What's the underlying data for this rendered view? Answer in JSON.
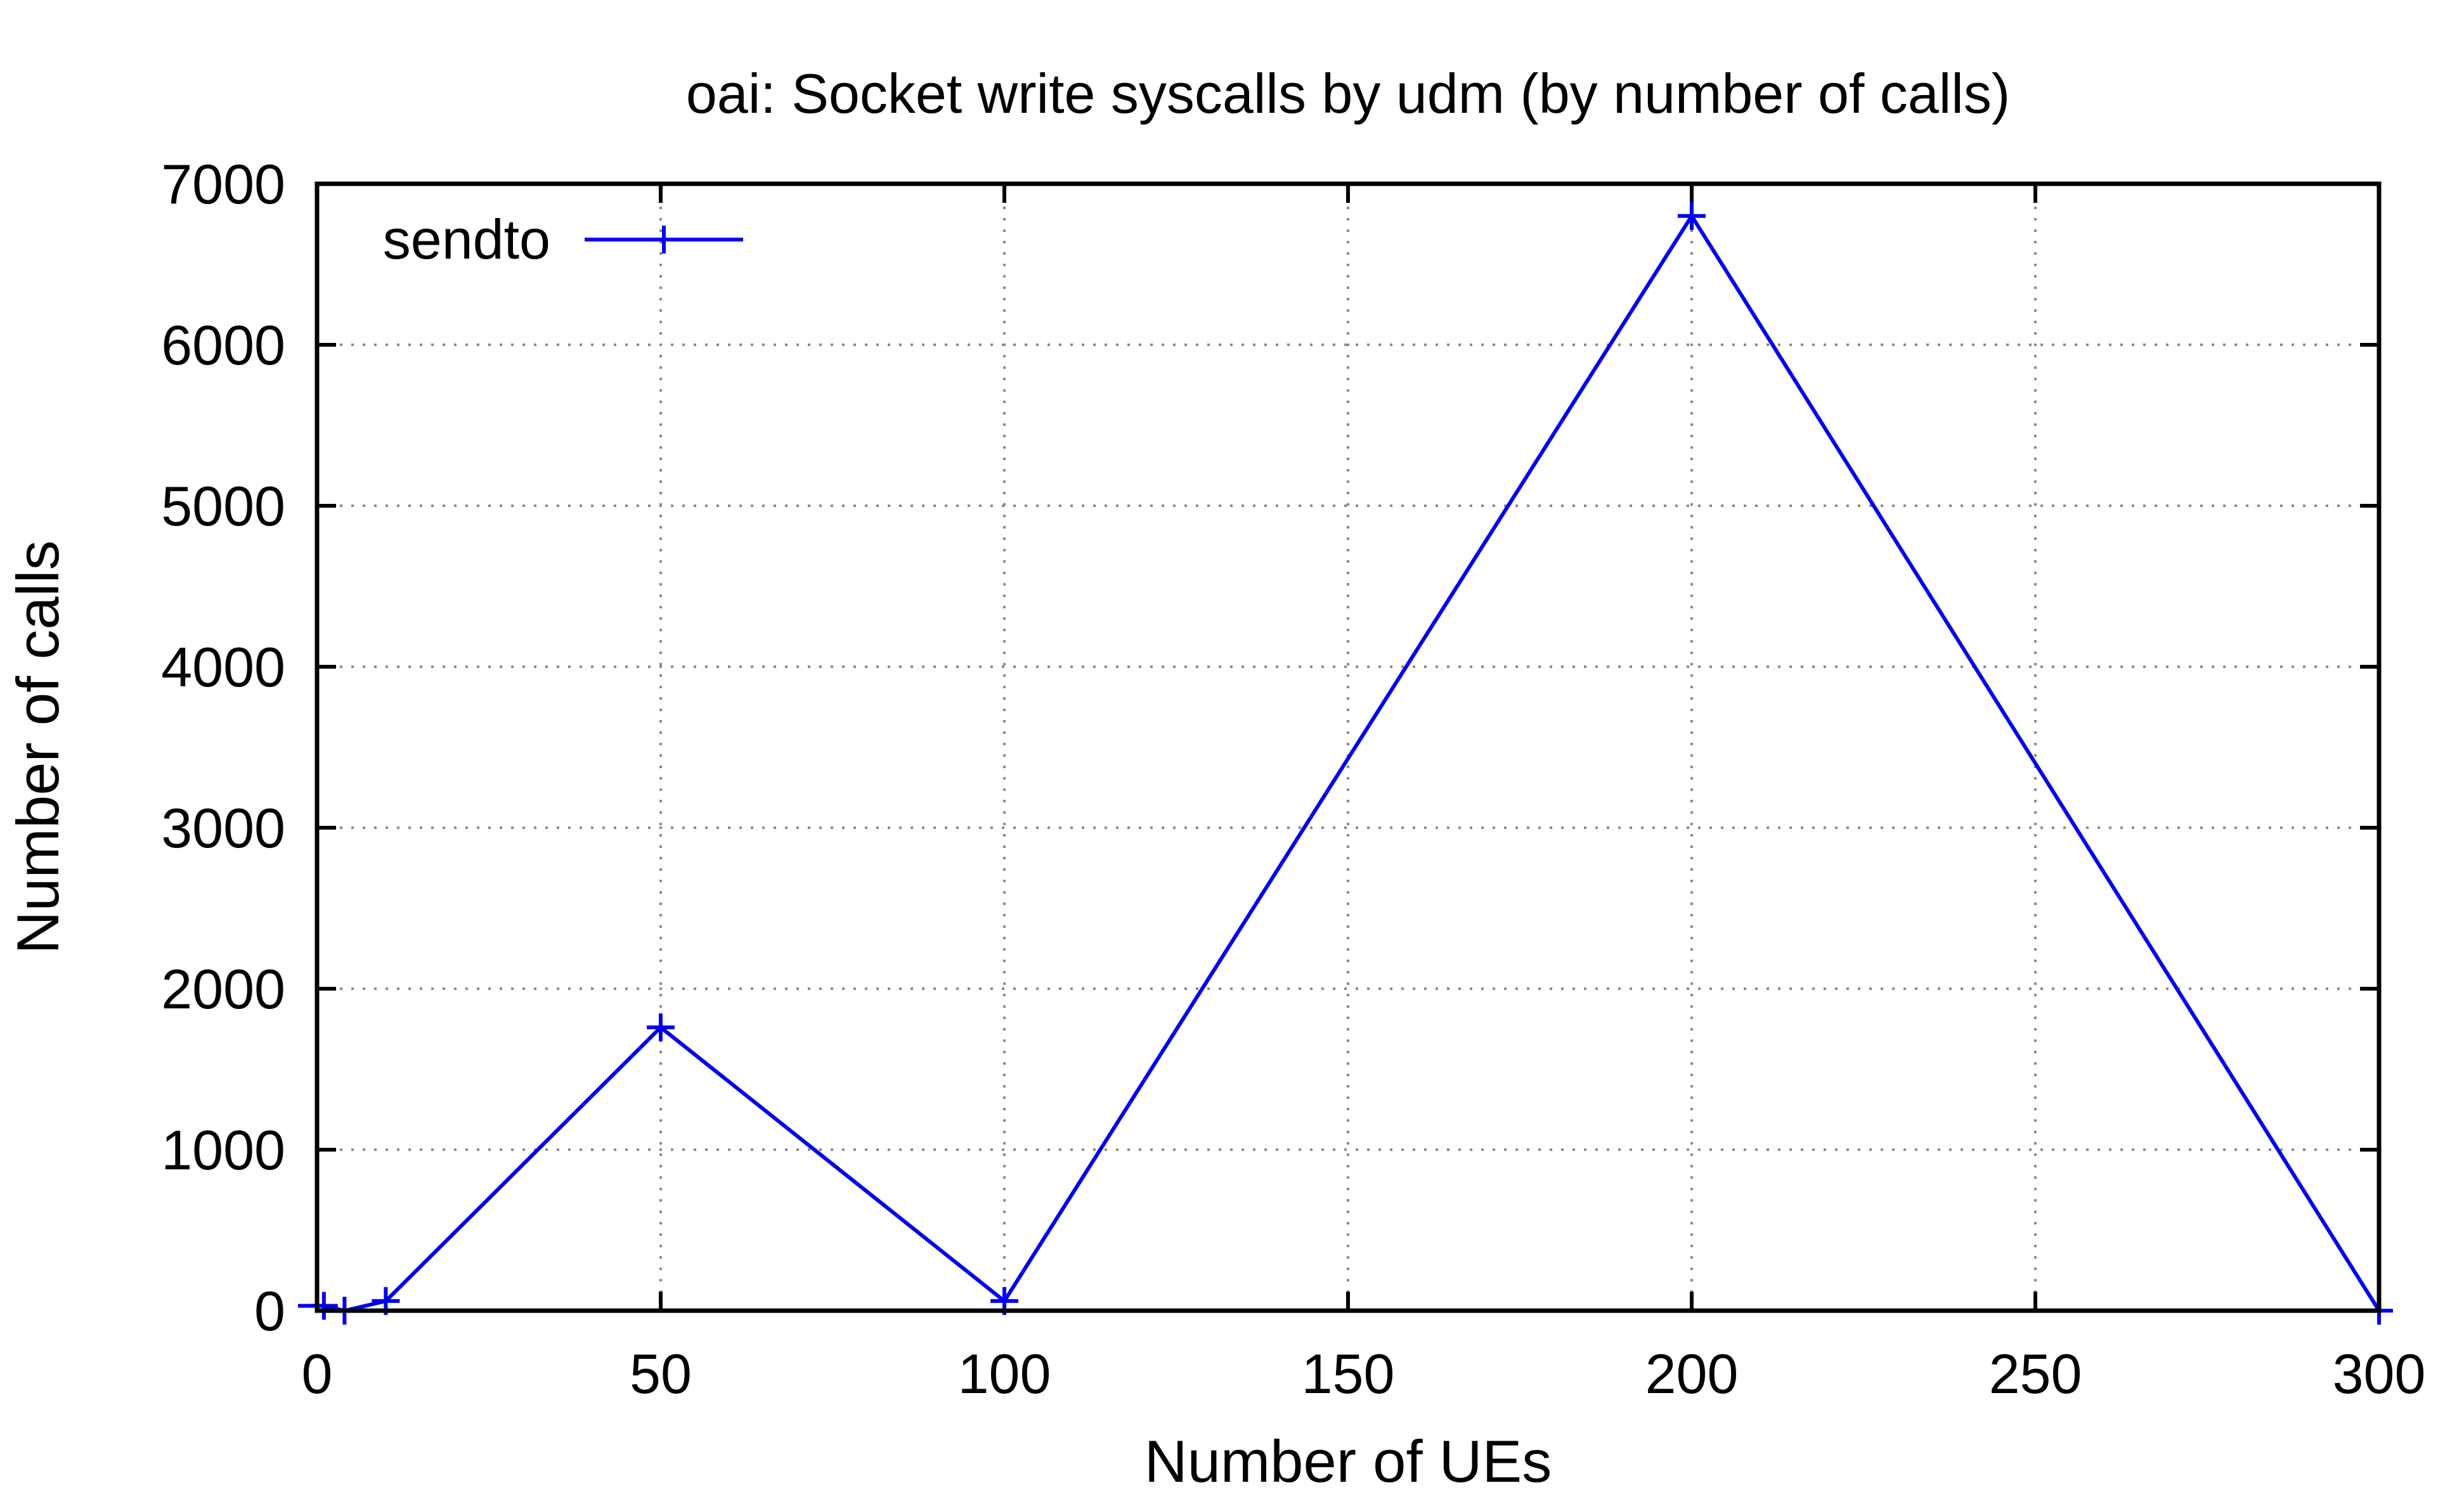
{
  "chart_data": {
    "type": "line",
    "title": "oai: Socket write syscalls by udm (by number of calls)",
    "xlabel": "Number of UEs",
    "ylabel": "Number of calls",
    "xlim": [
      0,
      300
    ],
    "ylim": [
      0,
      7000
    ],
    "xticks": [
      "0",
      "50",
      "100",
      "150",
      "200",
      "250",
      "300"
    ],
    "yticks": [
      "0",
      "1000",
      "2000",
      "3000",
      "4000",
      "5000",
      "6000",
      "7000"
    ],
    "grid": true,
    "legend_position": "top-left",
    "series": [
      {
        "name": "sendto",
        "color": "#0000ee",
        "marker": "plus",
        "x": [
          1,
          4,
          10,
          50,
          100,
          200,
          300
        ],
        "y": [
          30,
          0,
          60,
          1760,
          60,
          6800,
          0
        ]
      }
    ]
  }
}
